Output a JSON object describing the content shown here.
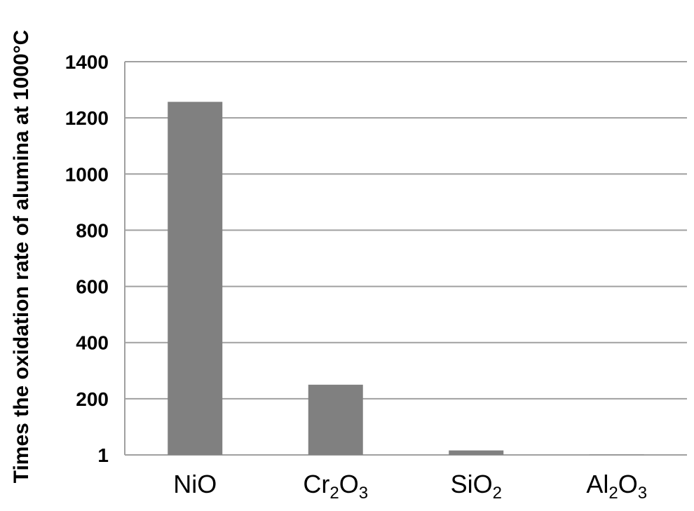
{
  "chart_data": {
    "type": "bar",
    "categories": [
      {
        "base": "NiO",
        "parts": [
          {
            "t": "NiO",
            "sub": false
          }
        ]
      },
      {
        "base": "Cr2O3",
        "parts": [
          {
            "t": "Cr",
            "sub": false
          },
          {
            "t": "2",
            "sub": true
          },
          {
            "t": "O",
            "sub": false
          },
          {
            "t": "3",
            "sub": true
          }
        ]
      },
      {
        "base": "SiO2",
        "parts": [
          {
            "t": "SiO",
            "sub": false
          },
          {
            "t": "2",
            "sub": true
          }
        ]
      },
      {
        "base": "Al2O3",
        "parts": [
          {
            "t": "Al",
            "sub": false
          },
          {
            "t": "2",
            "sub": true
          },
          {
            "t": "O",
            "sub": false
          },
          {
            "t": "3",
            "sub": true
          }
        ]
      }
    ],
    "values": [
      1257,
      250,
      16,
      1
    ],
    "ylabel": "Times the oxidation rate of alumina at 1000°C",
    "ylim": [
      0,
      1400
    ],
    "yticks": [
      {
        "value": 0,
        "label": "1"
      },
      {
        "value": 200,
        "label": "200"
      },
      {
        "value": 400,
        "label": "400"
      },
      {
        "value": 600,
        "label": "600"
      },
      {
        "value": 800,
        "label": "800"
      },
      {
        "value": 1000,
        "label": "1000"
      },
      {
        "value": 1200,
        "label": "1200"
      },
      {
        "value": 1400,
        "label": "1400"
      }
    ],
    "grid": true,
    "bar_color": "#808080",
    "grid_color": "#a0a0a0"
  }
}
